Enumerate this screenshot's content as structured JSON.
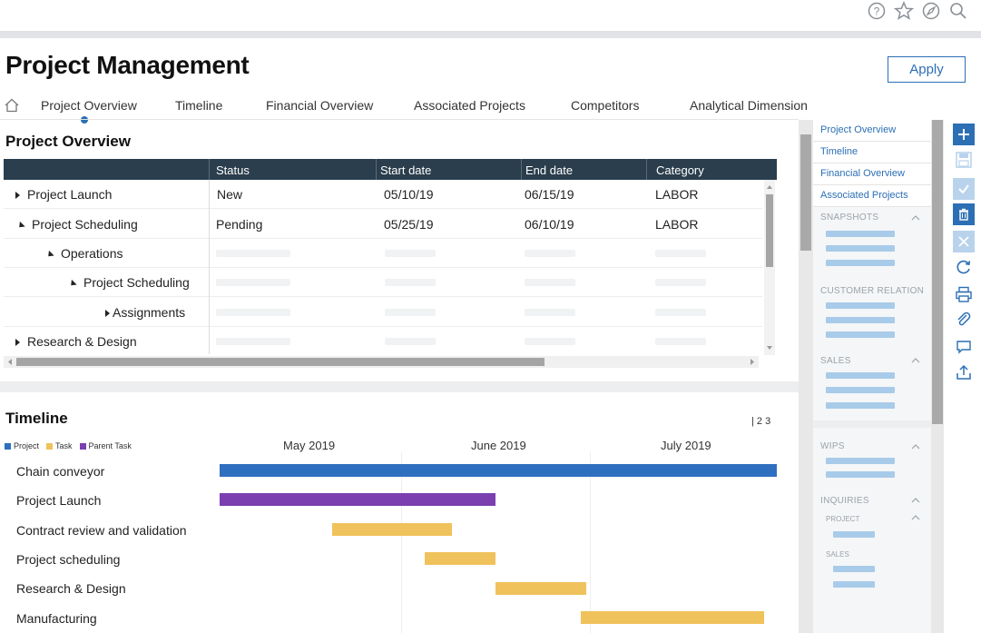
{
  "app": {
    "title": "Project Management",
    "apply_label": "Apply"
  },
  "top_icons": [
    "help-icon",
    "star-icon",
    "compass-icon",
    "search-icon"
  ],
  "tabs": [
    {
      "label": "Project Overview",
      "active": true
    },
    {
      "label": "Timeline"
    },
    {
      "label": "Financial Overview"
    },
    {
      "label": "Associated Projects"
    },
    {
      "label": "Competitors"
    },
    {
      "label": "Analytical Dimension"
    }
  ],
  "overview": {
    "title": "Project Overview",
    "columns": [
      "Status",
      "Start date",
      "End date",
      "Category"
    ],
    "rows": [
      {
        "name": "Project Launch",
        "status": "New",
        "start": "05/10/19",
        "end": "06/15/19",
        "category": "LABOR"
      },
      {
        "name": "Project Scheduling",
        "status": "Pending",
        "start": "05/25/19",
        "end": "06/10/19",
        "category": "LABOR"
      },
      {
        "name": "Operations"
      },
      {
        "name": "Project Scheduling"
      },
      {
        "name": "Assignments"
      },
      {
        "name": "Research & Design"
      }
    ]
  },
  "timeline": {
    "title": "Timeline",
    "pages": "| 2 3",
    "legend": [
      "Project",
      "Task",
      "Parent Task"
    ],
    "months": [
      "May 2019",
      "June 2019",
      "July 2019"
    ],
    "tasks": [
      "Chain conveyor",
      "Project Launch",
      "Contract review and validation",
      "Project scheduling",
      "Research & Design",
      "Manufacturing"
    ]
  },
  "right_panel": {
    "links": [
      "Project Overview",
      "Timeline",
      "Financial Overview",
      "Associated Projects"
    ],
    "sections": [
      "SNAPSHOTS",
      "CUSTOMER RELATION",
      "SALES",
      "WIPS",
      "INQUIRIES"
    ],
    "inquiry_subs": [
      "PROJECT",
      "SALES"
    ]
  },
  "colors": {
    "header": "#2b3e4d",
    "accent": "#2c6fb5",
    "project": "#2f6fbf",
    "task": "#f0c25c",
    "parent_task": "#7b3fb0"
  }
}
